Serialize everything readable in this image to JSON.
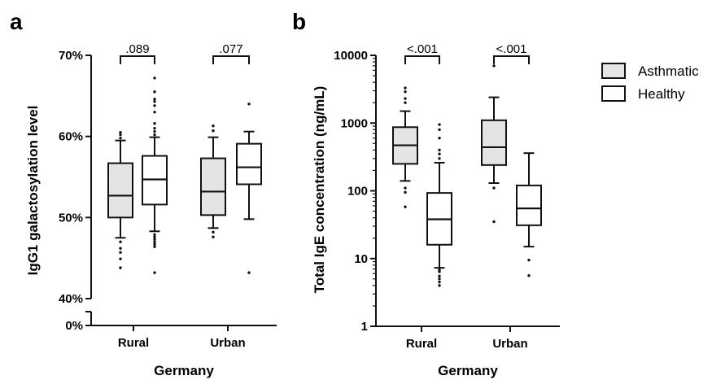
{
  "chart_data": [
    {
      "panel": "a",
      "type": "box",
      "xlabel": "Germany",
      "ylabel": "IgG1 galactosylation level",
      "categories": [
        "Rural",
        "Urban"
      ],
      "yticks": [
        "70%",
        "60%",
        "50%",
        "40%",
        "0%"
      ],
      "y_axis_break": true,
      "ylim": [
        40,
        70
      ],
      "series": [
        {
          "name": "Asthmatic",
          "color": "#e4e4e4",
          "boxes": [
            {
              "category": "Rural",
              "whisker_low": 47.5,
              "q1": 50.0,
              "median": 52.7,
              "q3": 56.7,
              "whisker_high": 59.5,
              "outliers": [
                60.5,
                60.2,
                59.8,
                47.0,
                46.2,
                45.7,
                44.9,
                43.8
              ]
            },
            {
              "category": "Urban",
              "whisker_low": 48.7,
              "q1": 50.3,
              "median": 53.2,
              "q3": 57.3,
              "whisker_high": 59.9,
              "outliers": [
                61.3,
                60.7,
                48.2,
                47.6
              ]
            }
          ]
        },
        {
          "name": "Healthy",
          "color": "#ffffff",
          "boxes": [
            {
              "category": "Rural",
              "whisker_low": 48.3,
              "q1": 51.6,
              "median": 54.7,
              "q3": 57.6,
              "whisker_high": 59.9,
              "outliers": [
                67.2,
                65.5,
                64.6,
                64.3,
                63.8,
                63.0,
                61.6,
                61.0,
                60.6,
                60.2,
                47.9,
                47.6,
                47.3,
                47.0,
                46.7,
                46.4,
                43.2
              ]
            },
            {
              "category": "Urban",
              "whisker_low": 49.8,
              "q1": 54.1,
              "median": 56.2,
              "q3": 59.1,
              "whisker_high": 60.6,
              "outliers": [
                64.0,
                43.2
              ]
            }
          ]
        }
      ],
      "comparisons": [
        {
          "category": "Rural",
          "p": ".089"
        },
        {
          "category": "Urban",
          "p": ".077"
        }
      ]
    },
    {
      "panel": "b",
      "type": "box",
      "xlabel": "Germany",
      "ylabel": "Total IgE concentration (ng/mL)",
      "categories": [
        "Rural",
        "Urban"
      ],
      "yscale": "log",
      "yticks": [
        "10000",
        "1000",
        "100",
        "10",
        "1"
      ],
      "ylim": [
        1,
        10000
      ],
      "series": [
        {
          "name": "Asthmatic",
          "color": "#e4e4e4",
          "boxes": [
            {
              "category": "Rural",
              "whisker_low": 140,
              "q1": 250,
              "median": 470,
              "q3": 870,
              "whisker_high": 1500,
              "outliers": [
                3300,
                2900,
                2300,
                2000,
                110,
                95,
                58
              ]
            },
            {
              "category": "Urban",
              "whisker_low": 130,
              "q1": 240,
              "median": 440,
              "q3": 1100,
              "whisker_high": 2400,
              "outliers": [
                7000,
                110,
                35
              ]
            }
          ]
        },
        {
          "name": "Healthy",
          "color": "#ffffff",
          "boxes": [
            {
              "category": "Rural",
              "whisker_low": 7.3,
              "q1": 16,
              "median": 38,
              "q3": 93,
              "whisker_high": 260,
              "outliers": [
                950,
                800,
                600,
                400,
                350,
                300,
                6.8,
                6.4,
                5.5,
                5.0,
                4.5,
                4.0
              ]
            },
            {
              "category": "Urban",
              "whisker_low": 15,
              "q1": 31,
              "median": 55,
              "q3": 120,
              "whisker_high": 360,
              "outliers": [
                9.5,
                5.6
              ]
            }
          ]
        }
      ],
      "comparisons": [
        {
          "category": "Rural",
          "p": "<.001"
        },
        {
          "category": "Urban",
          "p": "<.001"
        }
      ]
    }
  ],
  "panel_letters": [
    "a",
    "b"
  ],
  "legend": {
    "placement": "top-right",
    "items": [
      {
        "label": "Asthmatic",
        "color": "#e4e4e4"
      },
      {
        "label": "Healthy",
        "color": "#ffffff"
      }
    ]
  }
}
